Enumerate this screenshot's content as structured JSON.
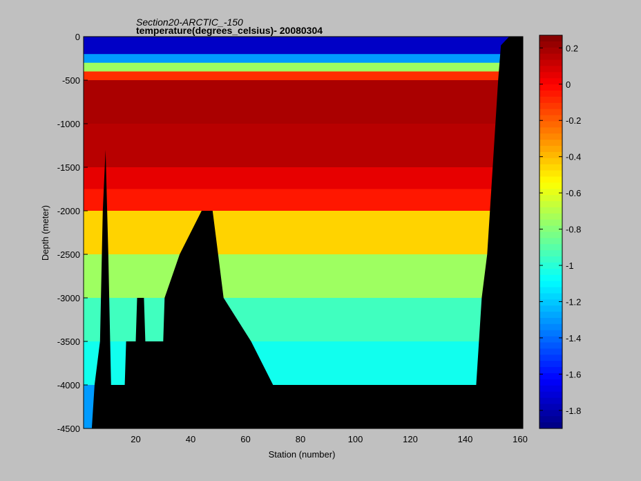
{
  "chart_data": {
    "type": "heatmap",
    "title": "Section20-ARCTIC_-150",
    "subtitle": "temperature(degrees_celsius)- 20080304",
    "xlabel": "Station (number)",
    "ylabel": "Depth (meter)",
    "xlim": [
      1,
      161
    ],
    "ylim": [
      -4500,
      0
    ],
    "x_ticks": [
      "20",
      "40",
      "60",
      "80",
      "100",
      "120",
      "140",
      "160"
    ],
    "x_tick_values": [
      20,
      40,
      60,
      80,
      100,
      120,
      140,
      160
    ],
    "y_ticks": [
      "0",
      "-500",
      "-1000",
      "-1500",
      "-2000",
      "-2500",
      "-3000",
      "-3500",
      "-4000",
      "-4500"
    ],
    "y_tick_values": [
      0,
      -500,
      -1000,
      -1500,
      -2000,
      -2500,
      -3000,
      -3500,
      -4000,
      -4500
    ],
    "colorbar": {
      "clim": [
        -1.9,
        0.27
      ],
      "colormap": "jet",
      "ticks": [
        "0.2",
        "0",
        "-0.2",
        "-0.4",
        "-0.6",
        "-0.8",
        "-1",
        "-1.2",
        "-1.4",
        "-1.6",
        "-1.8"
      ],
      "tick_values": [
        0.2,
        0,
        -0.2,
        -0.4,
        -0.6,
        -0.8,
        -1,
        -1.2,
        -1.4,
        -1.6,
        -1.8
      ]
    },
    "depth_layers": [
      {
        "top": 0,
        "bottom": -200,
        "temperature": -1.75
      },
      {
        "top": -200,
        "bottom": -300,
        "temperature": -1.3
      },
      {
        "top": -300,
        "bottom": -400,
        "temperature": -0.75
      },
      {
        "top": -400,
        "bottom": -500,
        "temperature": -0.1
      },
      {
        "top": -500,
        "bottom": -1000,
        "temperature": 0.18
      },
      {
        "top": -1000,
        "bottom": -1500,
        "temperature": 0.15
      },
      {
        "top": -1500,
        "bottom": -1750,
        "temperature": 0.05
      },
      {
        "top": -1750,
        "bottom": -2000,
        "temperature": -0.05
      },
      {
        "top": -2000,
        "bottom": -2500,
        "temperature": -0.45
      },
      {
        "top": -2500,
        "bottom": -3000,
        "temperature": -0.75
      },
      {
        "top": -3000,
        "bottom": -3500,
        "temperature": -0.95
      },
      {
        "top": -3500,
        "bottom": -4000,
        "temperature": -1.05
      },
      {
        "top": -4000,
        "bottom": -4500,
        "temperature": -1.3
      }
    ],
    "bathymetry": [
      {
        "station": 1,
        "depth": -4500
      },
      {
        "station": 4,
        "depth": -4500
      },
      {
        "station": 5,
        "depth": -4000
      },
      {
        "station": 7,
        "depth": -3500
      },
      {
        "station": 8,
        "depth": -2000
      },
      {
        "station": 9,
        "depth": -1300
      },
      {
        "station": 10,
        "depth": -2500
      },
      {
        "station": 11,
        "depth": -4000
      },
      {
        "station": 16,
        "depth": -4000
      },
      {
        "station": 16.5,
        "depth": -3500
      },
      {
        "station": 20,
        "depth": -3500
      },
      {
        "station": 20.5,
        "depth": -3000
      },
      {
        "station": 23,
        "depth": -3000
      },
      {
        "station": 23.5,
        "depth": -3500
      },
      {
        "station": 30,
        "depth": -3500
      },
      {
        "station": 30.5,
        "depth": -3000
      },
      {
        "station": 36,
        "depth": -2500
      },
      {
        "station": 44,
        "depth": -2000
      },
      {
        "station": 48,
        "depth": -2000
      },
      {
        "station": 50,
        "depth": -2500
      },
      {
        "station": 52,
        "depth": -3000
      },
      {
        "station": 62,
        "depth": -3500
      },
      {
        "station": 70,
        "depth": -4000
      },
      {
        "station": 144,
        "depth": -4000
      },
      {
        "station": 145,
        "depth": -3500
      },
      {
        "station": 146,
        "depth": -3000
      },
      {
        "station": 148,
        "depth": -2500
      },
      {
        "station": 150,
        "depth": -1500
      },
      {
        "station": 152,
        "depth": -500
      },
      {
        "station": 153,
        "depth": -100
      },
      {
        "station": 156,
        "depth": 0
      },
      {
        "station": 161,
        "depth": 0
      }
    ]
  }
}
